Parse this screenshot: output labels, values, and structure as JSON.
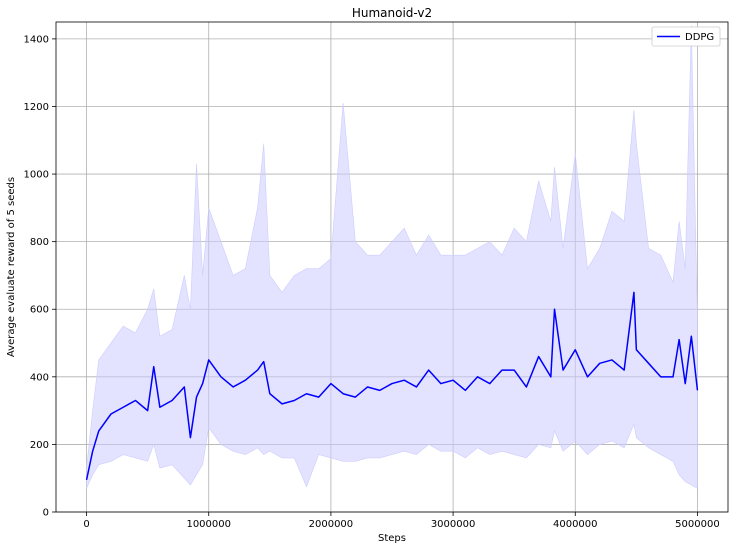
{
  "chart_data": {
    "type": "line",
    "title": "Humanoid-v2",
    "xlabel": "Steps",
    "ylabel": "Average evaluate reward of 5 seeds",
    "xlim": [
      -250000,
      5250000
    ],
    "ylim": [
      0,
      1450
    ],
    "xticks": [
      0,
      1000000,
      2000000,
      3000000,
      4000000,
      5000000
    ],
    "xtick_labels": [
      "0",
      "1000000",
      "2000000",
      "3000000",
      "4000000",
      "5000000"
    ],
    "yticks": [
      0,
      200,
      400,
      600,
      800,
      1000,
      1200,
      1400
    ],
    "ytick_labels": [
      "0",
      "200",
      "400",
      "600",
      "800",
      "1000",
      "1200",
      "1400"
    ],
    "grid": true,
    "legend_position": "top-right",
    "series": [
      {
        "name": "DDPG",
        "color": "#0000ff",
        "band_color": "#ccccff",
        "x": [
          0,
          50000,
          100000,
          200000,
          300000,
          400000,
          500000,
          550000,
          600000,
          700000,
          800000,
          850000,
          900000,
          950000,
          1000000,
          1100000,
          1200000,
          1300000,
          1400000,
          1450000,
          1500000,
          1600000,
          1700000,
          1800000,
          1900000,
          2000000,
          2100000,
          2200000,
          2300000,
          2400000,
          2500000,
          2600000,
          2700000,
          2800000,
          2900000,
          3000000,
          3100000,
          3200000,
          3300000,
          3400000,
          3500000,
          3600000,
          3700000,
          3800000,
          3830000,
          3900000,
          4000000,
          4100000,
          4200000,
          4300000,
          4400000,
          4480000,
          4500000,
          4600000,
          4700000,
          4800000,
          4850000,
          4900000,
          4950000,
          5000000
        ],
        "mean": [
          95,
          180,
          240,
          290,
          310,
          330,
          300,
          430,
          310,
          330,
          370,
          220,
          340,
          380,
          450,
          400,
          370,
          390,
          420,
          445,
          350,
          320,
          330,
          350,
          340,
          380,
          350,
          340,
          370,
          360,
          380,
          390,
          370,
          420,
          380,
          390,
          360,
          400,
          380,
          420,
          420,
          370,
          460,
          400,
          600,
          420,
          480,
          400,
          440,
          450,
          420,
          650,
          480,
          440,
          400,
          400,
          510,
          380,
          520,
          360
        ],
        "upper": [
          130,
          300,
          450,
          500,
          550,
          530,
          600,
          660,
          520,
          540,
          700,
          600,
          1030,
          700,
          900,
          800,
          700,
          720,
          900,
          1090,
          700,
          650,
          700,
          720,
          720,
          750,
          1210,
          800,
          760,
          760,
          800,
          840,
          760,
          820,
          760,
          760,
          760,
          780,
          800,
          760,
          840,
          800,
          980,
          860,
          1020,
          780,
          1060,
          720,
          780,
          890,
          860,
          1190,
          1090,
          780,
          760,
          680,
          860,
          720,
          1440,
          560
        ],
        "lower": [
          70,
          110,
          140,
          150,
          170,
          160,
          150,
          200,
          130,
          140,
          100,
          80,
          110,
          140,
          250,
          200,
          180,
          170,
          190,
          170,
          180,
          160,
          160,
          75,
          170,
          160,
          150,
          150,
          160,
          160,
          170,
          180,
          170,
          200,
          180,
          180,
          160,
          190,
          170,
          180,
          170,
          160,
          200,
          190,
          240,
          180,
          210,
          170,
          200,
          210,
          190,
          260,
          220,
          190,
          170,
          150,
          110,
          90,
          80,
          70
        ]
      }
    ]
  }
}
